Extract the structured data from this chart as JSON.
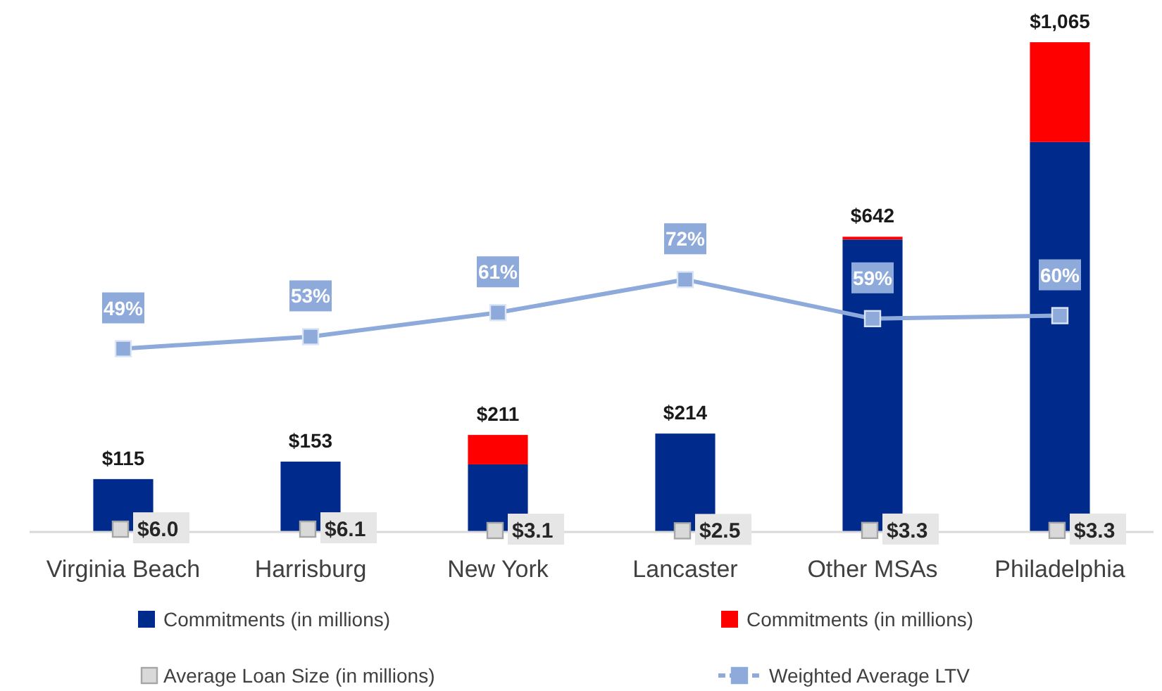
{
  "chart_data": {
    "type": "bar",
    "stacked": true,
    "categories": [
      "Virginia Beach",
      "Harrisburg",
      "New York",
      "Lancaster",
      "Other MSAs",
      "Philadelphia"
    ],
    "series": [
      {
        "name": "Commitments (in millions)",
        "color": "#002b8c",
        "values": [
          115,
          153,
          147,
          214,
          636,
          848
        ]
      },
      {
        "name": "Commitments (in millions)",
        "color": "#ff0000",
        "values": [
          0,
          0,
          64,
          0,
          6,
          217
        ]
      },
      {
        "name": "Average Loan Size (in millions)",
        "type": "scatter",
        "marker": "square",
        "color": "#d9d9d9",
        "values": [
          6.0,
          6.1,
          3.1,
          2.5,
          3.3,
          3.3
        ],
        "value_labels": [
          "$6.0",
          "$6.1",
          "$3.1",
          "$2.5",
          "$3.3",
          "$3.3"
        ]
      },
      {
        "name": "Weighted Average LTV",
        "type": "line",
        "axis": "y2",
        "marker": "square",
        "color": "#8eaadb",
        "values": [
          49,
          53,
          61,
          72,
          59,
          60
        ],
        "value_labels": [
          "49%",
          "53%",
          "61%",
          "72%",
          "59%",
          "60%"
        ]
      }
    ],
    "totals": [
      "$115",
      "$153",
      "$211",
      "$214",
      "$642",
      "$1,065"
    ],
    "ylim": [
      0,
      1065
    ],
    "y2lim": [
      -12,
      151
    ],
    "tick_labels": "x",
    "legend": "bottom"
  }
}
